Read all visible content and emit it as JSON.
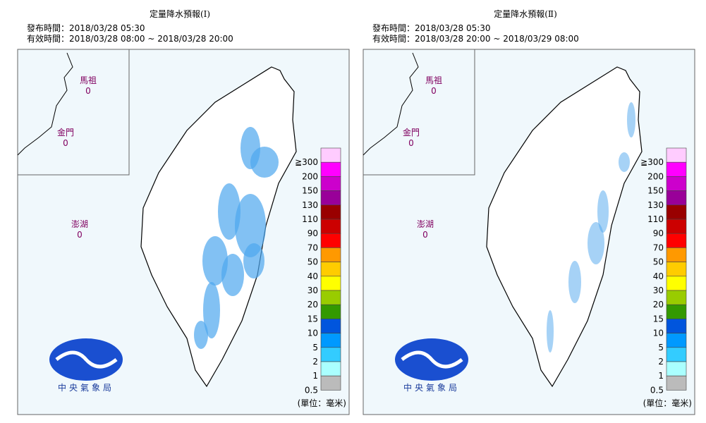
{
  "panels": [
    {
      "title": "定量降水預報(Ⅰ)",
      "issued": "發布時間：2018/03/28 05:30",
      "valid": "有效時間：2018/03/28 08:00 ~ 2018/03/28 20:00",
      "islands": [
        {
          "name": "馬祖",
          "value": "0"
        },
        {
          "name": "金門",
          "value": "0"
        },
        {
          "name": "澎湖",
          "value": "0"
        }
      ]
    },
    {
      "title": "定量降水預報(Ⅱ)",
      "issued": "發布時間：2018/03/28 05:30",
      "valid": "有效時間：2018/03/28 20:00 ~ 2018/03/29 08:00",
      "islands": [
        {
          "name": "馬祖",
          "value": "0"
        },
        {
          "name": "金門",
          "value": "0"
        },
        {
          "name": "澎湖",
          "value": "0"
        }
      ]
    }
  ],
  "legend": [
    {
      "label": "≧300",
      "color": "#ffccff"
    },
    {
      "label": "200",
      "color": "#ff00ff"
    },
    {
      "label": "150",
      "color": "#cc00cc"
    },
    {
      "label": "130",
      "color": "#990099"
    },
    {
      "label": "110",
      "color": "#990000"
    },
    {
      "label": "90",
      "color": "#cc0000"
    },
    {
      "label": "70",
      "color": "#ff0000"
    },
    {
      "label": "50",
      "color": "#ff9900"
    },
    {
      "label": "40",
      "color": "#ffcc00"
    },
    {
      "label": "30",
      "color": "#ffff00"
    },
    {
      "label": "20",
      "color": "#99cc00"
    },
    {
      "label": "15",
      "color": "#339900"
    },
    {
      "label": "10",
      "color": "#0055dd"
    },
    {
      "label": "5",
      "color": "#0099ff"
    },
    {
      "label": "2",
      "color": "#33ccff"
    },
    {
      "label": "1",
      "color": "#aaffff"
    },
    {
      "label": "0.5",
      "color": "#bbbbbb"
    }
  ],
  "unit": "(單位：毫米)",
  "logo": "中央氣象局"
}
